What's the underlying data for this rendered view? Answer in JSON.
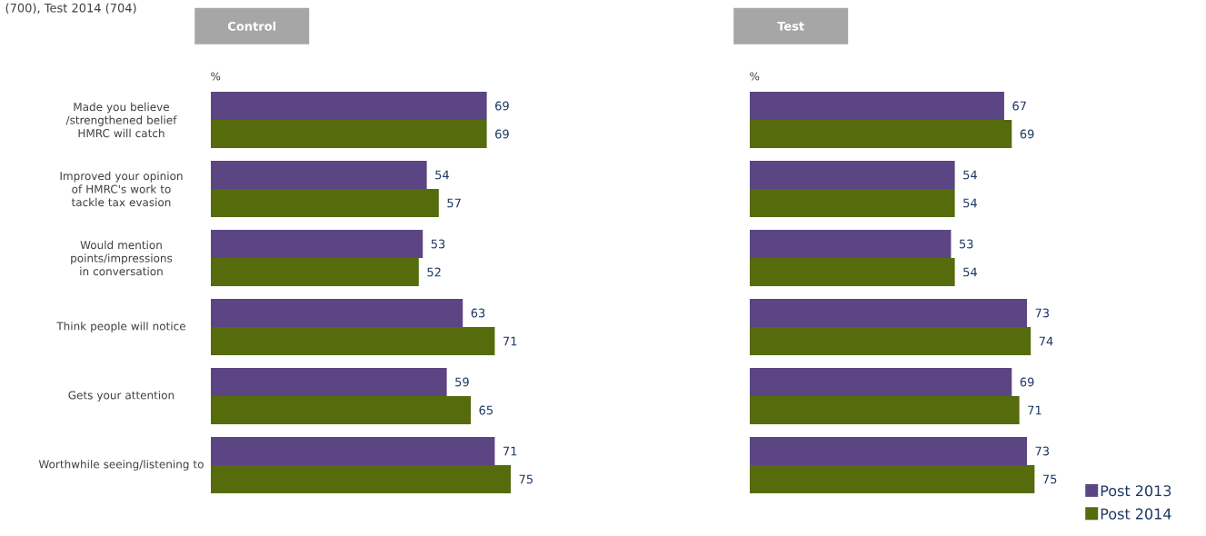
{
  "chart_data": [
    {
      "type": "bar",
      "orientation": "horizontal",
      "title": "Control",
      "xlabel": "%",
      "categories": [
        "Made you believe /strengthened belief HMRC will catch",
        "Improved your opinion of HMRC's work to tackle tax evasion",
        "Would mention points/impressions in conversation",
        "Think people will notice",
        "Gets your attention",
        "Worthwhile seeing/listening to"
      ],
      "series": [
        {
          "color": "#5b4683",
          "values": [
            69,
            54,
            53,
            63,
            59,
            71
          ]
        },
        {
          "color": "#556b0c",
          "values": [
            69,
            57,
            52,
            71,
            65,
            75
          ]
        }
      ],
      "data_labels": true,
      "tick_labels": "y",
      "annotations": [
        "(700), Test 2014 (704)"
      ]
    },
    {
      "type": "bar",
      "orientation": "horizontal",
      "title": "Test",
      "xlabel": "%",
      "categories": [
        null,
        null,
        null,
        null,
        null,
        null
      ],
      "series": [
        {
          "name": "Post 2013",
          "color": "#5b4683",
          "values": [
            67,
            54,
            53,
            73,
            69,
            73
          ]
        },
        {
          "name": "Post 2014",
          "color": "#556b0c",
          "values": [
            69,
            54,
            54,
            74,
            71,
            75
          ]
        }
      ],
      "data_labels": true,
      "tick_labels": false,
      "legend": "bottom right"
    }
  ]
}
